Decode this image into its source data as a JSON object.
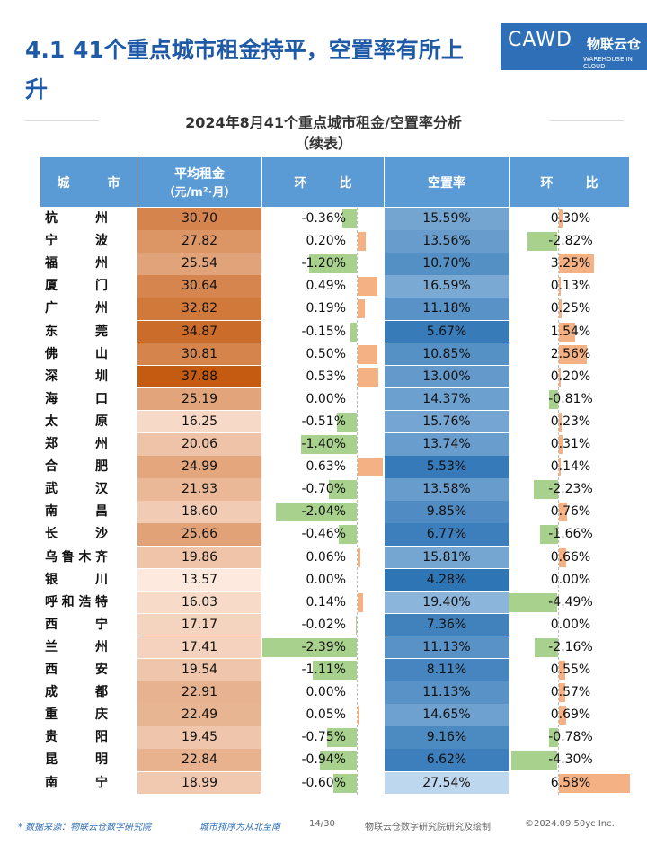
{
  "header": {
    "title": "4.1 41个重点城市租金持平，空置率有所上升",
    "logo": {
      "main": "CAWD",
      "brand": "物联云仓",
      "brand_en": "WAREHOUSE IN CLOUD"
    }
  },
  "table": {
    "title": "2024年8月41个重点城市租金/空置率分析",
    "subtitle": "（续表）",
    "columns": [
      "城市",
      {
        "label": "平均租金",
        "unit": "（元/m²·月）"
      },
      "环比",
      "空置率",
      "环比"
    ],
    "rows": [
      [
        "杭州",
        "30.70",
        "-0.36%",
        "15.59%",
        "0.30%"
      ],
      [
        "宁波",
        "27.82",
        "0.20%",
        "13.56%",
        "-2.82%"
      ],
      [
        "福州",
        "25.54",
        "-1.20%",
        "10.70%",
        "3.25%"
      ],
      [
        "厦门",
        "30.64",
        "0.49%",
        "16.59%",
        "0.13%"
      ],
      [
        "广州",
        "32.82",
        "0.19%",
        "11.18%",
        "0.25%"
      ],
      [
        "东莞",
        "34.87",
        "-0.15%",
        "5.67%",
        "1.54%"
      ],
      [
        "佛山",
        "30.81",
        "0.50%",
        "10.85%",
        "2.56%"
      ],
      [
        "深圳",
        "37.88",
        "0.53%",
        "13.00%",
        "0.20%"
      ],
      [
        "海口",
        "25.19",
        "0.00%",
        "14.37%",
        "-0.81%"
      ],
      [
        "太原",
        "16.25",
        "-0.51%",
        "15.76%",
        "0.23%"
      ],
      [
        "郑州",
        "20.06",
        "-1.40%",
        "13.74%",
        "0.31%"
      ],
      [
        "合肥",
        "24.99",
        "0.63%",
        "5.53%",
        "0.14%"
      ],
      [
        "武汉",
        "21.93",
        "-0.70%",
        "13.58%",
        "-2.23%"
      ],
      [
        "南昌",
        "18.60",
        "-2.04%",
        "9.85%",
        "0.76%"
      ],
      [
        "长沙",
        "25.66",
        "-0.46%",
        "6.77%",
        "-1.66%"
      ],
      [
        "乌鲁木齐",
        "19.86",
        "0.06%",
        "15.81%",
        "0.66%"
      ],
      [
        "银川",
        "13.57",
        "0.00%",
        "4.28%",
        "0.00%"
      ],
      [
        "呼和浩特",
        "16.03",
        "0.14%",
        "19.40%",
        "-4.49%"
      ],
      [
        "西宁",
        "17.17",
        "-0.02%",
        "7.36%",
        "0.00%"
      ],
      [
        "兰州",
        "17.41",
        "-2.39%",
        "11.13%",
        "-2.16%"
      ],
      [
        "西安",
        "19.54",
        "-1.11%",
        "8.11%",
        "0.55%"
      ],
      [
        "成都",
        "22.91",
        "0.00%",
        "11.13%",
        "0.57%"
      ],
      [
        "重庆",
        "22.49",
        "0.05%",
        "14.65%",
        "0.69%"
      ],
      [
        "贵阳",
        "19.45",
        "-0.75%",
        "9.16%",
        "-0.78%"
      ],
      [
        "昆明",
        "22.84",
        "-0.94%",
        "6.62%",
        "-4.30%"
      ],
      [
        "南宁",
        "18.99",
        "-0.60%",
        "27.54%",
        "6.58%"
      ]
    ]
  },
  "footer": {
    "source": "* 数据来源：物联云仓数字研究院",
    "note": "城市排序为从北至南",
    "page": "14/30",
    "credit": "物联云仓数字研究院研究及绘制",
    "copyright": "©2024.09 50yc Inc."
  }
}
